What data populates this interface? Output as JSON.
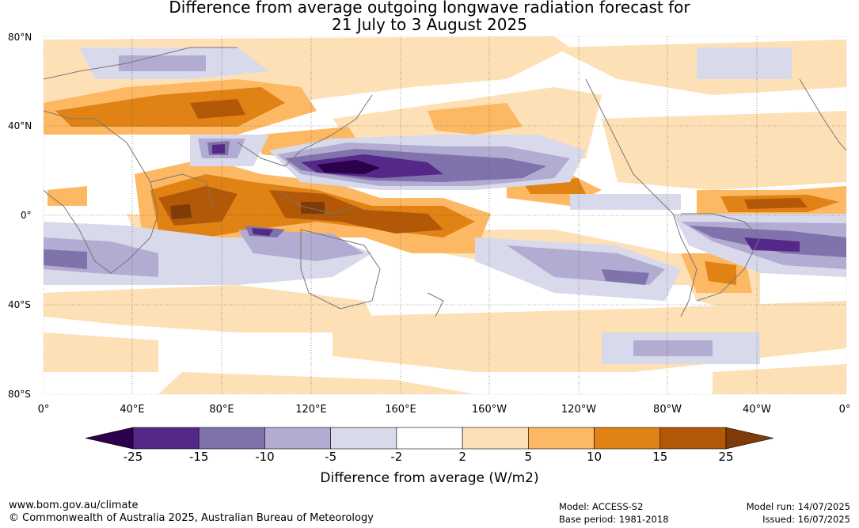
{
  "title_line1": "Difference from average outgoing longwave radiation forecast for",
  "title_line2": "21 July to 3 August 2025",
  "lat_labels": [
    "80°N",
    "40°N",
    "0°",
    "40°S",
    "80°S"
  ],
  "lon_labels": [
    "0°",
    "40°E",
    "80°E",
    "120°E",
    "160°E",
    "160°W",
    "120°W",
    "80°W",
    "40°W",
    "0°"
  ],
  "colorbar": {
    "ticks": [
      "-25",
      "-15",
      "-10",
      "-5",
      "-2",
      "2",
      "5",
      "10",
      "15",
      "25"
    ],
    "colors": [
      "#2d004b",
      "#542788",
      "#8073ac",
      "#b2abd2",
      "#d8daeb",
      "#ffffff",
      "#fee0b6",
      "#fdb863",
      "#e08214",
      "#b35806",
      "#7f3b08"
    ],
    "label": "Difference from average (W/m2)"
  },
  "footer": {
    "website": "www.bom.gov.au/climate",
    "copyright": "© Commonwealth of Australia 2025, Australian Bureau of Meteorology",
    "model": "Model: ACCESS-S2",
    "base_period": "Base period: 1981-2018",
    "model_run": "Model run: 14/07/2025",
    "issued": "Issued: 16/07/2025"
  }
}
